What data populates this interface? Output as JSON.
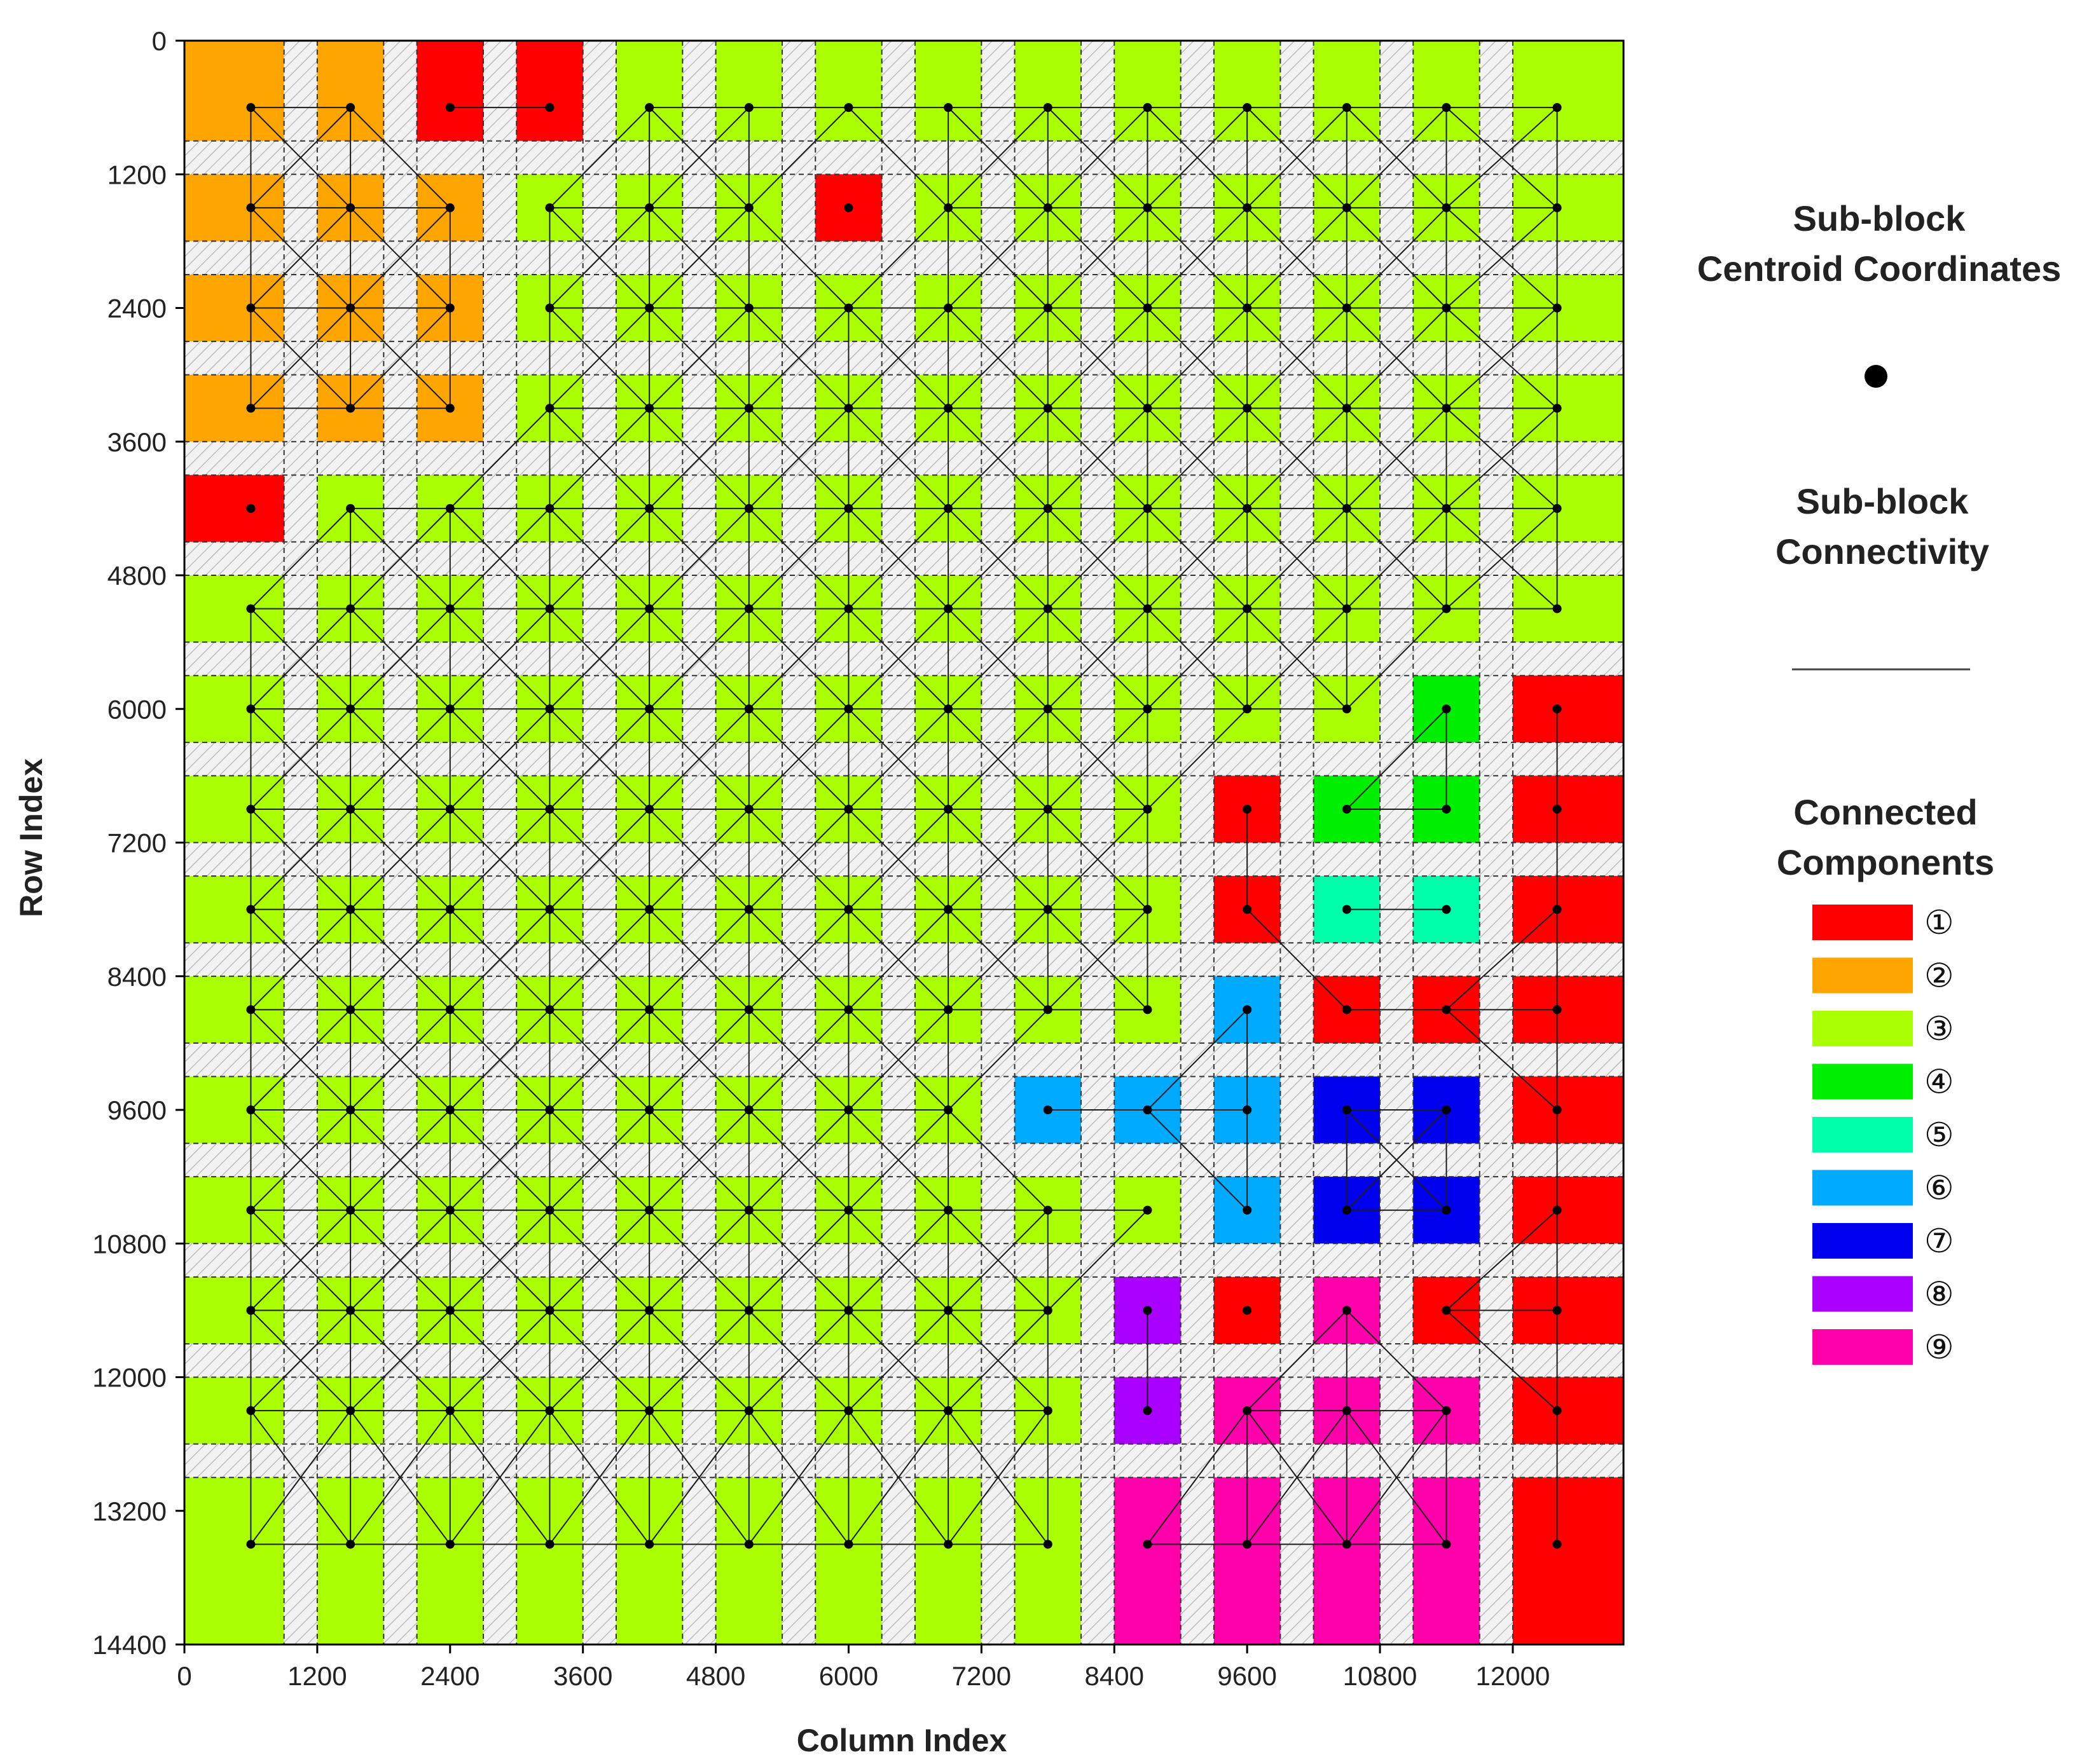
{
  "chart_data": {
    "type": "heatmap",
    "title": "",
    "xlabel": "Column Index",
    "ylabel": "Row Index",
    "xlim": [
      0,
      13000
    ],
    "ylim": [
      0,
      14400
    ],
    "x_ticks": [
      0,
      1200,
      2400,
      3600,
      4800,
      6000,
      7200,
      8400,
      9600,
      10800,
      12000
    ],
    "y_ticks": [
      0,
      1200,
      2400,
      3600,
      4800,
      6000,
      7200,
      8400,
      9600,
      10800,
      12000,
      13200,
      14400
    ],
    "column_bounds": [
      [
        0,
        900
      ],
      [
        1200,
        1800
      ],
      [
        2100,
        2700
      ],
      [
        3000,
        3600
      ],
      [
        3900,
        4500
      ],
      [
        4800,
        5400
      ],
      [
        5700,
        6300
      ],
      [
        6600,
        7200
      ],
      [
        7500,
        8100
      ],
      [
        8400,
        9000
      ],
      [
        9300,
        9900
      ],
      [
        10200,
        10800
      ],
      [
        11100,
        11700
      ],
      [
        12000,
        13000
      ]
    ],
    "row_bounds": [
      [
        0,
        900
      ],
      [
        1200,
        1800
      ],
      [
        2100,
        2700
      ],
      [
        3000,
        3600
      ],
      [
        3900,
        4500
      ],
      [
        4800,
        5400
      ],
      [
        5700,
        6300
      ],
      [
        6600,
        7200
      ],
      [
        7500,
        8100
      ],
      [
        8400,
        9000
      ],
      [
        9300,
        9900
      ],
      [
        10200,
        10800
      ],
      [
        11100,
        11700
      ],
      [
        12000,
        12600
      ],
      [
        12900,
        14400
      ]
    ],
    "centroid_x": [
      600,
      1500,
      2400,
      3300,
      4200,
      5100,
      6000,
      6900,
      7800,
      8700,
      9600,
      10500,
      11400,
      12400
    ],
    "centroid_y": [
      600,
      1500,
      2400,
      3300,
      4200,
      5100,
      6000,
      6900,
      7800,
      8700,
      9600,
      10500,
      11400,
      12300,
      13500
    ],
    "cell_components": [
      "22113333333333",
      "22233313333333",
      "22233333333333",
      "22233333333333",
      "13333333333333",
      "33333333333333",
      "33333333333341",
      "33333333331441",
      "33333333331551",
      "33333333336111",
      "33333333666771",
      "33333333336771",
      "33333333381911",
      "33333333389991",
      "33333333399991"
    ],
    "connected_components": [
      {
        "label": "①",
        "color": "#ff0000"
      },
      {
        "label": "②",
        "color": "#ffa500"
      },
      {
        "label": "③",
        "color": "#aaff00"
      },
      {
        "label": "④",
        "color": "#00ee00"
      },
      {
        "label": "⑤",
        "color": "#00ffaa"
      },
      {
        "label": "⑥",
        "color": "#00aaff"
      },
      {
        "label": "⑦",
        "color": "#0000ee"
      },
      {
        "label": "⑧",
        "color": "#aa00ff"
      },
      {
        "label": "⑨",
        "color": "#ff00aa"
      }
    ]
  },
  "legend": {
    "centroid_title": [
      "Sub-block",
      "Centroid Coordinates"
    ],
    "connectivity_title": [
      "Sub-block",
      "Connectivity"
    ],
    "components_title": [
      "Connected",
      "Components"
    ]
  },
  "colors": {
    "gap_fill": "#f2f2f2",
    "hatch_stroke": "#c8c8c8",
    "line": "#111111"
  }
}
